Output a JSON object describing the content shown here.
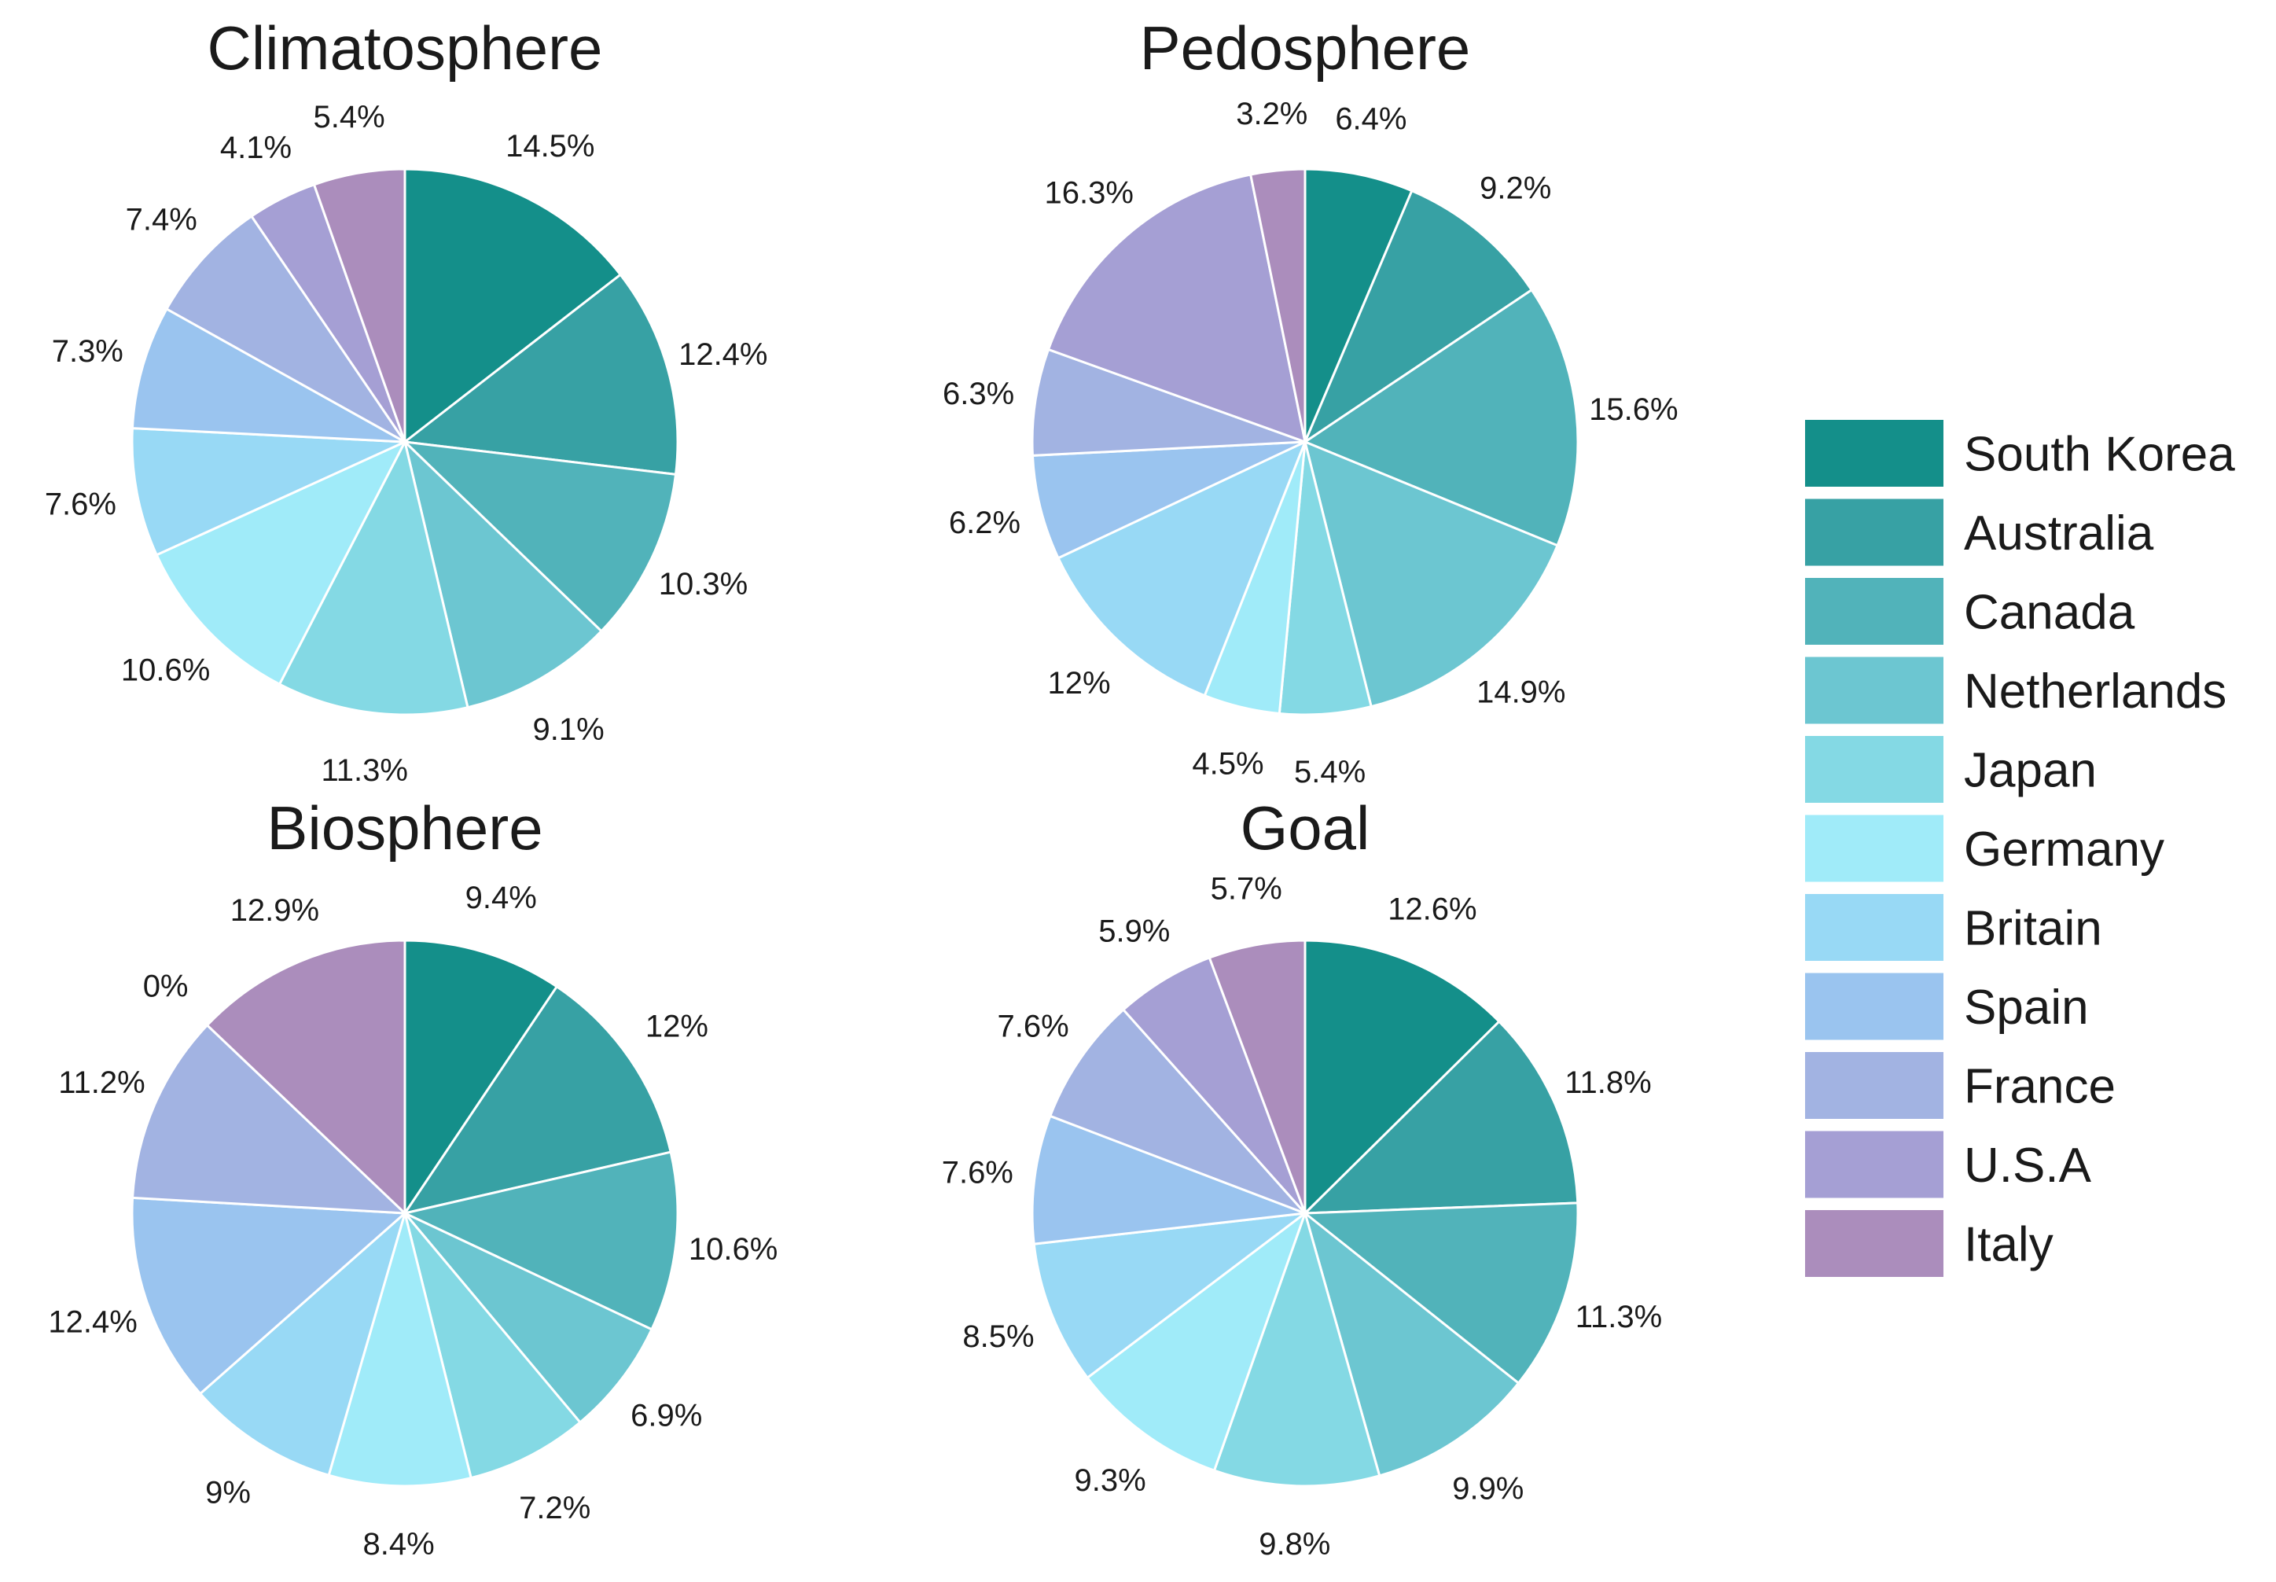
{
  "legend": {
    "items": [
      "South Korea",
      "Australia",
      "Canada",
      "Netherlands",
      "Japan",
      "Germany",
      "Britain",
      "Spain",
      "France",
      "U.S.A",
      "Italy"
    ],
    "colors": [
      "#148f8a",
      "#37a1a4",
      "#51b3ba",
      "#6cc6d1",
      "#84d9e4",
      "#a0ebf9",
      "#98d9f5",
      "#9ac4ef",
      "#a2b3e2",
      "#a59fd4",
      "#ab8dbc"
    ]
  },
  "chart_data": [
    {
      "type": "pie",
      "title": "Climatosphere",
      "categories": [
        "South Korea",
        "Australia",
        "Canada",
        "Netherlands",
        "Japan",
        "Germany",
        "Britain",
        "Spain",
        "France",
        "U.S.A",
        "Italy"
      ],
      "values": [
        14.5,
        12.4,
        10.3,
        9.1,
        11.3,
        10.6,
        7.6,
        7.3,
        7.4,
        4.1,
        5.4
      ],
      "labels": [
        "14.5%",
        "12.4%",
        "10.3%",
        "9.1%",
        "11.3%",
        "10.6%",
        "7.6%",
        "7.3%",
        "7.4%",
        "4.1%",
        "5.4%"
      ]
    },
    {
      "type": "pie",
      "title": "Pedosphere",
      "categories": [
        "South Korea",
        "Australia",
        "Canada",
        "Netherlands",
        "Japan",
        "Germany",
        "Britain",
        "Spain",
        "France",
        "U.S.A",
        "Italy"
      ],
      "values": [
        6.4,
        9.2,
        15.6,
        14.9,
        5.4,
        4.5,
        12,
        6.2,
        6.3,
        16.3,
        3.2
      ],
      "labels": [
        "6.4%",
        "9.2%",
        "15.6%",
        "14.9%",
        "5.4%",
        "4.5%",
        "12%",
        "6.2%",
        "6.3%",
        "16.3%",
        "3.2%"
      ]
    },
    {
      "type": "pie",
      "title": "Biosphere",
      "categories": [
        "South Korea",
        "Australia",
        "Canada",
        "Netherlands",
        "Japan",
        "Germany",
        "Britain",
        "Spain",
        "France",
        "U.S.A",
        "Italy"
      ],
      "values": [
        9.4,
        12,
        10.6,
        6.9,
        7.2,
        8.4,
        9,
        12.4,
        11.2,
        0,
        12.9
      ],
      "labels": [
        "9.4%",
        "12%",
        "10.6%",
        "6.9%",
        "7.2%",
        "8.4%",
        "9%",
        "12.4%",
        "11.2%",
        "0%",
        "12.9%"
      ]
    },
    {
      "type": "pie",
      "title": "Goal",
      "categories": [
        "South Korea",
        "Australia",
        "Canada",
        "Netherlands",
        "Japan",
        "Germany",
        "Britain",
        "Spain",
        "France",
        "U.S.A",
        "Italy"
      ],
      "values": [
        12.6,
        11.8,
        11.3,
        9.9,
        9.8,
        9.3,
        8.5,
        7.6,
        7.6,
        5.9,
        5.7
      ],
      "labels": [
        "12.6%",
        "11.8%",
        "11.3%",
        "9.9%",
        "9.8%",
        "9.3%",
        "8.5%",
        "7.6%",
        "7.6%",
        "5.9%",
        "5.7%"
      ]
    }
  ]
}
